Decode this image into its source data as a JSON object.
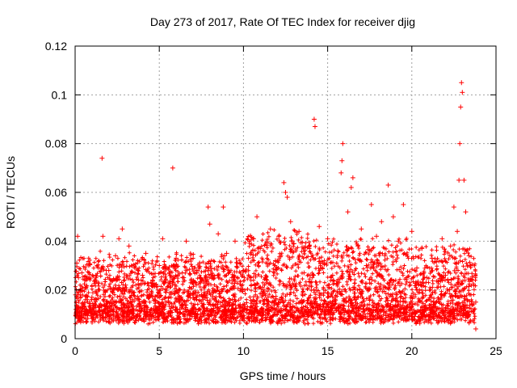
{
  "chart_data": {
    "type": "scatter",
    "title": "Day 273 of 2017, Rate Of TEC Index for receiver djig",
    "xlabel": "GPS time / hours",
    "ylabel": "ROTI / TECUs",
    "xlim": [
      0,
      25
    ],
    "ylim": [
      0,
      0.12
    ],
    "x_ticks": [
      0,
      5,
      10,
      15,
      20,
      25
    ],
    "y_ticks": [
      0,
      0.02,
      0.04,
      0.06,
      0.08,
      0.1,
      0.12
    ],
    "x_tick_labels": [
      "0",
      "5",
      "10",
      "15",
      "20",
      "25"
    ],
    "y_tick_labels": [
      "0",
      "0.02",
      "0.04",
      "0.06",
      "0.08",
      "0.1",
      "0.12"
    ],
    "grid": true,
    "marker": "+",
    "series": [
      {
        "name": "ROTI",
        "color": "#ff0000",
        "points": [
          [
            0.05,
            0.012
          ],
          [
            0.1,
            0.031
          ],
          [
            0.15,
            0.042
          ],
          [
            0.2,
            0.025
          ],
          [
            0.3,
            0.018
          ],
          [
            0.4,
            0.027
          ],
          [
            0.5,
            0.014
          ],
          [
            0.6,
            0.021
          ],
          [
            0.8,
            0.011
          ],
          [
            1.0,
            0.017
          ],
          [
            1.2,
            0.024
          ],
          [
            1.4,
            0.013
          ],
          [
            1.6,
            0.074
          ],
          [
            1.65,
            0.042
          ],
          [
            1.8,
            0.019
          ],
          [
            2.0,
            0.028
          ],
          [
            2.2,
            0.012
          ],
          [
            2.4,
            0.034
          ],
          [
            2.6,
            0.041
          ],
          [
            2.8,
            0.045
          ],
          [
            3.0,
            0.022
          ],
          [
            3.2,
            0.038
          ],
          [
            3.4,
            0.016
          ],
          [
            3.6,
            0.029
          ],
          [
            3.8,
            0.013
          ],
          [
            4.0,
            0.026
          ],
          [
            4.2,
            0.035
          ],
          [
            4.4,
            0.018
          ],
          [
            4.6,
            0.024
          ],
          [
            4.8,
            0.011
          ],
          [
            5.0,
            0.03
          ],
          [
            5.2,
            0.041
          ],
          [
            5.4,
            0.019
          ],
          [
            5.6,
            0.027
          ],
          [
            5.8,
            0.07
          ],
          [
            6.0,
            0.033
          ],
          [
            6.2,
            0.015
          ],
          [
            6.4,
            0.025
          ],
          [
            6.6,
            0.04
          ],
          [
            6.8,
            0.018
          ],
          [
            7.0,
            0.012
          ],
          [
            7.2,
            0.022
          ],
          [
            7.4,
            0.031
          ],
          [
            7.6,
            0.016
          ],
          [
            7.9,
            0.054
          ],
          [
            8.0,
            0.047
          ],
          [
            8.2,
            0.026
          ],
          [
            8.5,
            0.043
          ],
          [
            8.8,
            0.054
          ],
          [
            9.0,
            0.035
          ],
          [
            9.2,
            0.02
          ],
          [
            9.5,
            0.04
          ],
          [
            9.8,
            0.014
          ],
          [
            10.0,
            0.028
          ],
          [
            10.3,
            0.033
          ],
          [
            10.6,
            0.041
          ],
          [
            10.8,
            0.05
          ],
          [
            11.0,
            0.037
          ],
          [
            11.3,
            0.025
          ],
          [
            11.6,
            0.045
          ],
          [
            11.9,
            0.032
          ],
          [
            12.1,
            0.042
          ],
          [
            12.4,
            0.064
          ],
          [
            12.5,
            0.06
          ],
          [
            12.6,
            0.058
          ],
          [
            12.8,
            0.048
          ],
          [
            13.0,
            0.039
          ],
          [
            13.3,
            0.044
          ],
          [
            13.6,
            0.027
          ],
          [
            13.9,
            0.038
          ],
          [
            14.2,
            0.09
          ],
          [
            14.25,
            0.087
          ],
          [
            14.5,
            0.046
          ],
          [
            14.8,
            0.032
          ],
          [
            15.0,
            0.041
          ],
          [
            15.3,
            0.026
          ],
          [
            15.6,
            0.036
          ],
          [
            15.8,
            0.068
          ],
          [
            15.85,
            0.073
          ],
          [
            15.9,
            0.08
          ],
          [
            16.2,
            0.052
          ],
          [
            16.4,
            0.062
          ],
          [
            16.5,
            0.066
          ],
          [
            16.8,
            0.038
          ],
          [
            17.0,
            0.045
          ],
          [
            17.3,
            0.03
          ],
          [
            17.6,
            0.055
          ],
          [
            17.9,
            0.042
          ],
          [
            18.2,
            0.048
          ],
          [
            18.4,
            0.034
          ],
          [
            18.6,
            0.063
          ],
          [
            18.9,
            0.05
          ],
          [
            19.2,
            0.04
          ],
          [
            19.5,
            0.055
          ],
          [
            19.8,
            0.033
          ],
          [
            20.0,
            0.044
          ],
          [
            20.3,
            0.029
          ],
          [
            20.6,
            0.037
          ],
          [
            20.9,
            0.025
          ],
          [
            21.2,
            0.033
          ],
          [
            21.5,
            0.021
          ],
          [
            21.8,
            0.041
          ],
          [
            22.0,
            0.026
          ],
          [
            22.3,
            0.038
          ],
          [
            22.5,
            0.054
          ],
          [
            22.7,
            0.044
          ],
          [
            22.8,
            0.065
          ],
          [
            22.85,
            0.08
          ],
          [
            22.9,
            0.095
          ],
          [
            22.95,
            0.105
          ],
          [
            23.0,
            0.101
          ],
          [
            23.1,
            0.065
          ],
          [
            23.2,
            0.052
          ],
          [
            23.4,
            0.034
          ],
          [
            23.6,
            0.024
          ],
          [
            23.8,
            0.015
          ],
          [
            23.8,
            0.004
          ]
        ]
      }
    ]
  }
}
